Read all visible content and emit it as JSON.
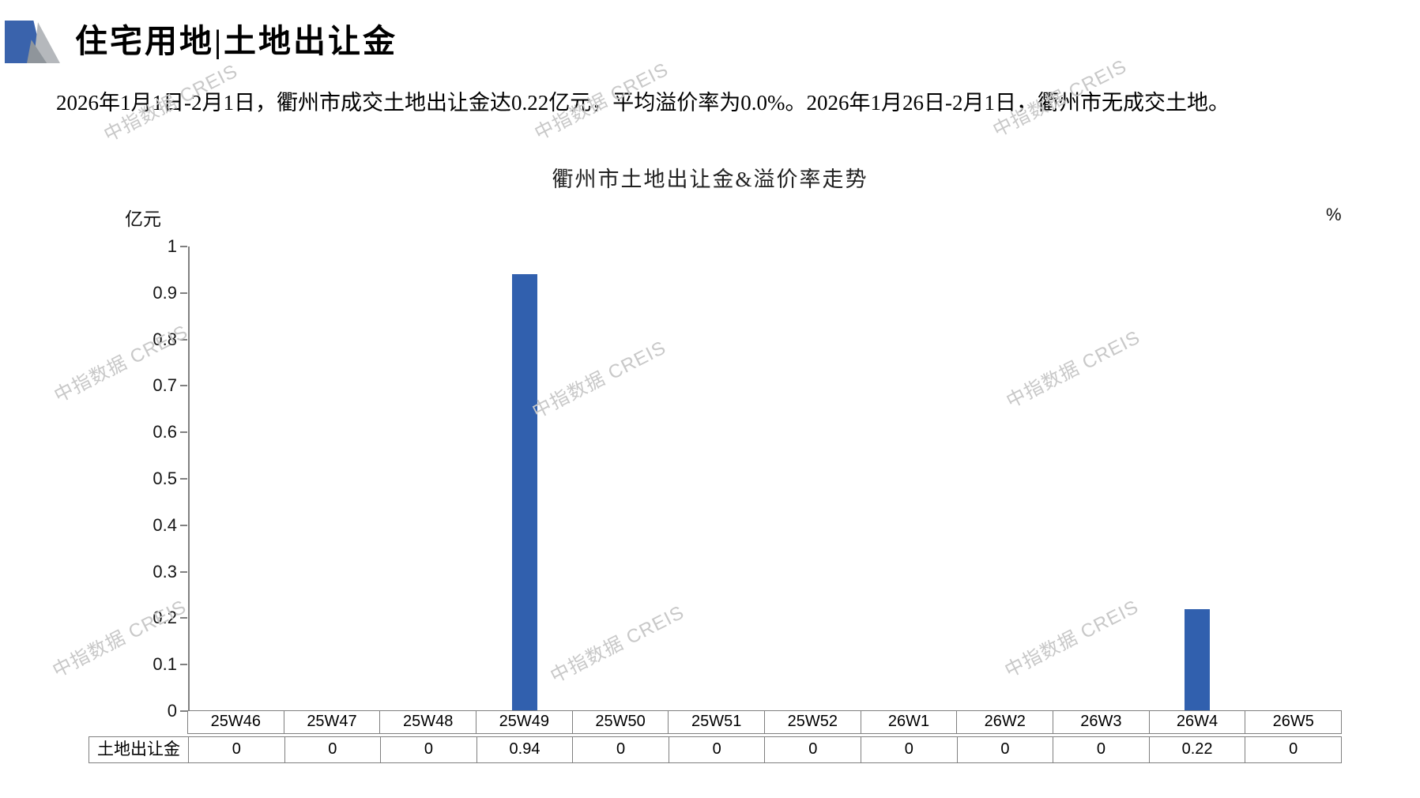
{
  "header": {
    "title": "住宅用地|土地出让金",
    "summary": "2026年1月1日-2月1日，衢州市成交土地出让金达0.22亿元，平均溢价率为0.0%。2026年1月26日-2月1日，衢州市无成交土地。"
  },
  "watermark": {
    "text": "中指数据 CREIS"
  },
  "chart_data": {
    "type": "bar",
    "title": "衢州市土地出让金&溢价率走势",
    "left_axis_unit": "亿元",
    "right_axis_unit": "%",
    "categories": [
      "25W46",
      "25W47",
      "25W48",
      "25W49",
      "25W50",
      "25W51",
      "25W52",
      "26W1",
      "26W2",
      "26W3",
      "26W4",
      "26W5"
    ],
    "series": [
      {
        "name": "土地出让金",
        "values": [
          0,
          0,
          0,
          0.94,
          0,
          0,
          0,
          0,
          0,
          0,
          0.22,
          0
        ]
      }
    ],
    "ylim": [
      0,
      1
    ],
    "y_tick_step": 0.1,
    "y_tick_labels": [
      "1",
      "0.9",
      "0.8",
      "0.7",
      "0.6",
      "0.5",
      "0.4",
      "0.3",
      "0.2",
      "0.1",
      "0"
    ],
    "grid": false,
    "legend": "none",
    "table": {
      "row_label": "土地出让金",
      "values": [
        "0",
        "0",
        "0",
        "0.94",
        "0",
        "0",
        "0",
        "0",
        "0",
        "0",
        "0.22",
        "0"
      ]
    }
  },
  "colors": {
    "bar": "#3160AE",
    "axis": "#808080",
    "table_border": "#7F7F7F",
    "watermark": "#C8C8C8",
    "logo_blue": "#3A63AC",
    "logo_gray_light": "#B5B8BC",
    "logo_gray_dark": "#8F959B"
  }
}
